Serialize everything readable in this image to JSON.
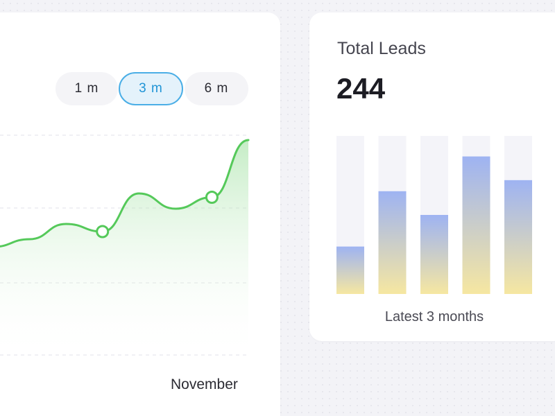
{
  "range_toggle": {
    "options": [
      "1 m",
      "3 m",
      "6 m"
    ],
    "selected": "3 m"
  },
  "line_chart": {
    "x_label": "November",
    "line_color": "#55c95a"
  },
  "total_leads": {
    "title": "Total Leads",
    "value": "244",
    "caption": "Latest 3 months"
  },
  "chart_data": [
    {
      "type": "area",
      "xlabel": "November",
      "ylabel": "",
      "x": [
        0,
        1,
        2,
        3,
        4,
        5,
        6,
        7
      ],
      "values": [
        28,
        30,
        34,
        32,
        42,
        38,
        41,
        56
      ],
      "highlighted_points": [
        3,
        6
      ],
      "ylim": [
        0,
        60
      ],
      "grid": true
    },
    {
      "type": "bar",
      "title": "Total Leads",
      "caption": "Latest 3 months",
      "values": [
        30,
        65,
        50,
        87,
        72
      ],
      "ylim": [
        0,
        100
      ],
      "gradient_top": "#9eb3f2",
      "gradient_bottom": "#f6e7a1",
      "track_color": "#f4f4f9"
    }
  ]
}
